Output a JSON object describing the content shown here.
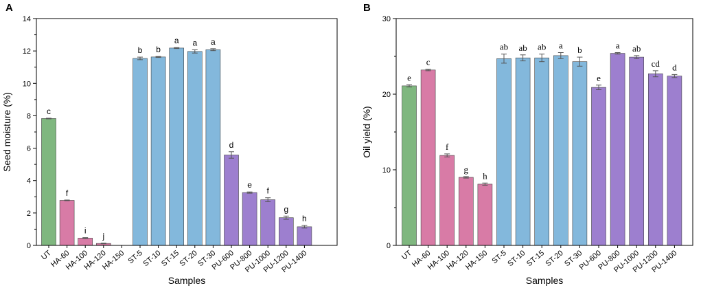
{
  "colors": {
    "UT": "#7fb77f",
    "HA": "#d87ba6",
    "ST": "#83b8dc",
    "PU": "#9d7fcf",
    "edge": "#444444",
    "error": "#555555"
  },
  "chart_data": [
    {
      "type": "bar",
      "panel": "A",
      "xlabel": "Samples",
      "ylabel": "Seed moisture (%)",
      "ylim": [
        0,
        14
      ],
      "yticks": [
        "0",
        "2",
        "4",
        "6",
        "8",
        "10",
        "12",
        "14"
      ],
      "categories": [
        "UT",
        "HA-60",
        "HA-100",
        "HA-120",
        "HA-150",
        "ST-5",
        "ST-10",
        "ST-15",
        "ST-20",
        "ST-30",
        "PU-600",
        "PU-800",
        "PU-1000",
        "PU-1200",
        "PU-1400"
      ],
      "groups": [
        "UT",
        "HA",
        "HA",
        "HA",
        "HA",
        "ST",
        "ST",
        "ST",
        "ST",
        "ST",
        "PU",
        "PU",
        "PU",
        "PU",
        "PU"
      ],
      "values": [
        7.83,
        2.78,
        0.45,
        0.12,
        0,
        11.54,
        11.63,
        12.18,
        11.97,
        12.08,
        5.58,
        3.26,
        2.82,
        1.71,
        1.15
      ],
      "errors": [
        0.02,
        0.02,
        0.03,
        0.02,
        0,
        0.08,
        0.03,
        0.03,
        0.1,
        0.06,
        0.2,
        0.04,
        0.12,
        0.1,
        0.08
      ],
      "significance": [
        "c",
        "f",
        "i",
        "j",
        "",
        "b",
        "b",
        "a",
        "a",
        "a",
        "d",
        "e",
        "f",
        "g",
        "h"
      ]
    },
    {
      "type": "bar",
      "panel": "B",
      "xlabel": "Samples",
      "ylabel": "Oil yield (%)",
      "ylim": [
        0,
        30
      ],
      "yticks": [
        "0",
        "10",
        "20",
        "30"
      ],
      "categories": [
        "UT",
        "HA-60",
        "HA-100",
        "HA-120",
        "HA-150",
        "ST-5",
        "ST-10",
        "ST-15",
        "ST-20",
        "ST-30",
        "PU-600",
        "PU-800",
        "PU-1000",
        "PU-1200",
        "PU-1400"
      ],
      "groups": [
        "UT",
        "HA",
        "HA",
        "HA",
        "HA",
        "ST",
        "ST",
        "ST",
        "ST",
        "ST",
        "PU",
        "PU",
        "PU",
        "PU",
        "PU"
      ],
      "values": [
        21.1,
        23.2,
        11.9,
        9.0,
        8.1,
        24.7,
        24.8,
        24.8,
        25.1,
        24.3,
        20.9,
        25.4,
        24.9,
        22.7,
        22.4
      ],
      "errors": [
        0.15,
        0.1,
        0.2,
        0.1,
        0.15,
        0.6,
        0.4,
        0.5,
        0.4,
        0.6,
        0.3,
        0.1,
        0.2,
        0.4,
        0.2
      ],
      "significance": [
        "e",
        "c",
        "f",
        "g",
        "h",
        "ab",
        "ab",
        "ab",
        "a",
        "b",
        "e",
        "a",
        "ab",
        "cd",
        "d"
      ]
    }
  ]
}
